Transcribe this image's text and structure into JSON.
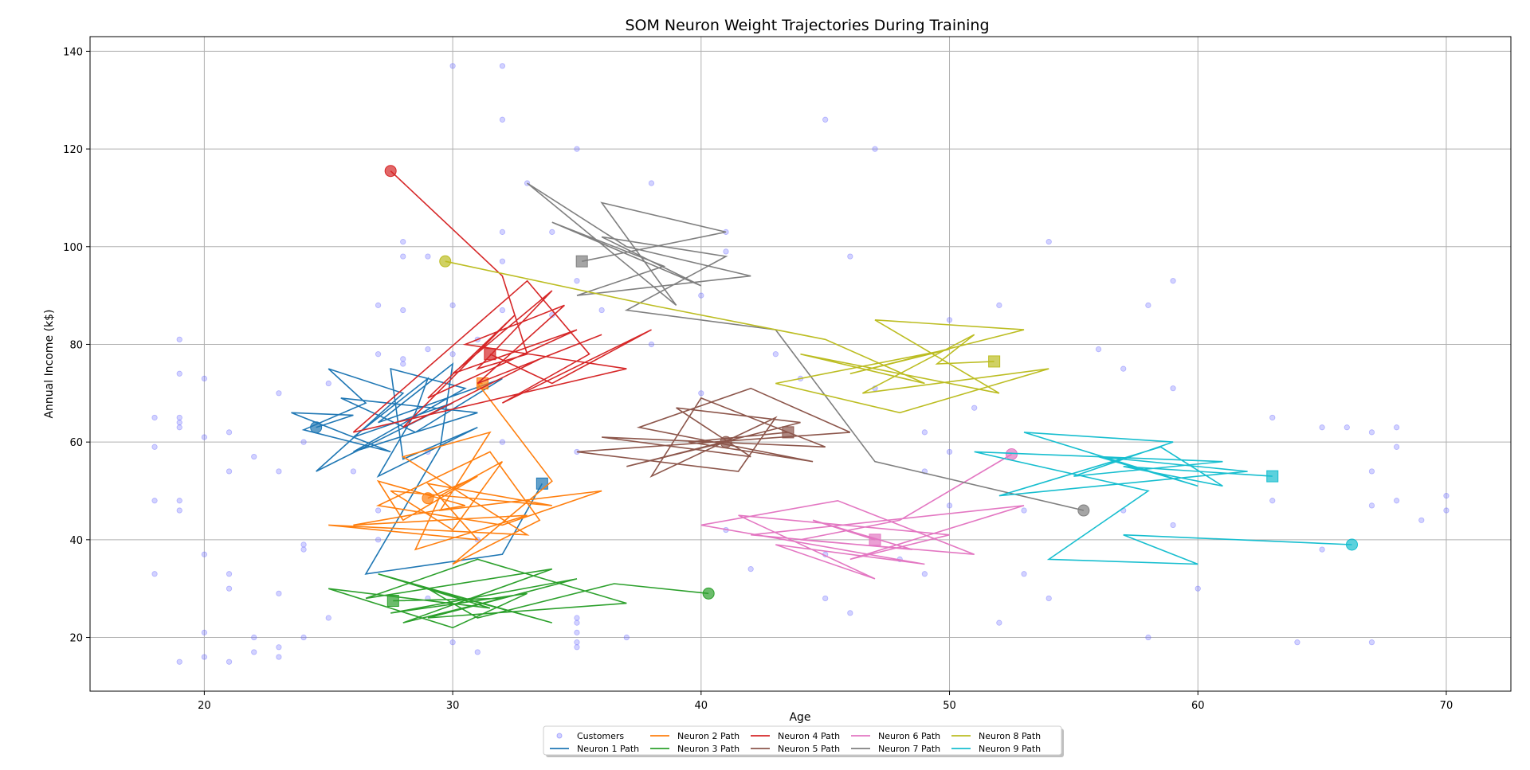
{
  "chart_data": {
    "type": "line",
    "title": "SOM Neuron Weight Trajectories During Training",
    "xlabel": "Age",
    "ylabel": "Annual Income (k$)",
    "xlim": [
      15.4,
      72.6
    ],
    "ylim": [
      9,
      143
    ],
    "x_ticks": [
      20,
      30,
      40,
      50,
      60,
      70
    ],
    "y_ticks": [
      20,
      40,
      60,
      80,
      100,
      120,
      140
    ],
    "grid": true,
    "legend_position": "bottom-center",
    "customers": {
      "name": "Customers",
      "color": "#6b6bff",
      "points": [
        [
          19,
          15
        ],
        [
          21,
          15
        ],
        [
          20,
          16
        ],
        [
          23,
          16
        ],
        [
          22,
          17
        ],
        [
          23,
          18
        ],
        [
          31,
          17
        ],
        [
          35,
          18
        ],
        [
          35,
          19
        ],
        [
          30,
          19
        ],
        [
          20,
          21
        ],
        [
          35,
          21
        ],
        [
          22,
          20
        ],
        [
          24,
          20
        ],
        [
          37,
          20
        ],
        [
          35,
          23
        ],
        [
          35,
          24
        ],
        [
          25,
          24
        ],
        [
          46,
          25
        ],
        [
          45,
          28
        ],
        [
          54,
          28
        ],
        [
          29,
          28
        ],
        [
          23,
          29
        ],
        [
          21,
          30
        ],
        [
          60,
          30
        ],
        [
          18,
          33
        ],
        [
          21,
          33
        ],
        [
          49,
          33
        ],
        [
          53,
          33
        ],
        [
          20,
          37
        ],
        [
          42,
          34
        ],
        [
          24,
          38
        ],
        [
          24,
          39
        ],
        [
          27,
          40
        ],
        [
          31,
          40
        ],
        [
          48,
          36
        ],
        [
          65,
          38
        ],
        [
          69,
          44
        ],
        [
          57,
          46
        ],
        [
          19,
          46
        ],
        [
          27,
          46
        ],
        [
          53,
          46
        ],
        [
          67,
          47
        ],
        [
          18,
          48
        ],
        [
          19,
          48
        ],
        [
          63,
          48
        ],
        [
          68,
          48
        ],
        [
          70,
          46
        ],
        [
          70,
          49
        ],
        [
          21,
          54
        ],
        [
          23,
          54
        ],
        [
          49,
          54
        ],
        [
          67,
          54
        ],
        [
          19,
          63
        ],
        [
          19,
          64
        ],
        [
          19,
          65
        ],
        [
          18,
          65
        ],
        [
          18,
          59
        ],
        [
          20,
          61
        ],
        [
          21,
          62
        ],
        [
          22,
          57
        ],
        [
          24,
          60
        ],
        [
          26,
          54
        ],
        [
          29,
          58
        ],
        [
          32,
          60
        ],
        [
          35,
          58
        ],
        [
          50,
          58
        ],
        [
          49,
          62
        ],
        [
          66,
          63
        ],
        [
          65,
          63
        ],
        [
          68,
          63
        ],
        [
          67,
          62
        ],
        [
          68,
          59
        ],
        [
          63,
          65
        ],
        [
          51,
          67
        ],
        [
          40,
          70
        ],
        [
          23,
          70
        ],
        [
          25,
          72
        ],
        [
          27,
          78
        ],
        [
          28,
          76
        ],
        [
          28,
          77
        ],
        [
          29,
          79
        ],
        [
          30,
          78
        ],
        [
          31,
          81
        ],
        [
          19,
          74
        ],
        [
          19,
          81
        ],
        [
          20,
          73
        ],
        [
          27,
          88
        ],
        [
          28,
          87
        ],
        [
          30,
          88
        ],
        [
          32,
          87
        ],
        [
          34,
          86
        ],
        [
          36,
          87
        ],
        [
          38,
          80
        ],
        [
          43,
          78
        ],
        [
          44,
          73
        ],
        [
          47,
          71
        ],
        [
          50,
          85
        ],
        [
          52,
          88
        ],
        [
          56,
          79
        ],
        [
          57,
          75
        ],
        [
          58,
          88
        ],
        [
          59,
          71
        ],
        [
          59,
          93
        ],
        [
          54,
          101
        ],
        [
          46,
          98
        ],
        [
          28,
          98
        ],
        [
          29,
          98
        ],
        [
          28,
          101
        ],
        [
          32,
          97
        ],
        [
          32,
          103
        ],
        [
          34,
          103
        ],
        [
          35,
          93
        ],
        [
          40,
          90
        ],
        [
          41,
          99
        ],
        [
          41,
          103
        ],
        [
          38,
          113
        ],
        [
          33,
          113
        ],
        [
          35,
          120
        ],
        [
          32,
          126
        ],
        [
          45,
          126
        ],
        [
          47,
          120
        ],
        [
          30,
          137
        ],
        [
          32,
          137
        ],
        [
          58,
          20
        ],
        [
          64,
          19
        ],
        [
          67,
          19
        ],
        [
          59,
          43
        ],
        [
          52,
          23
        ],
        [
          41,
          42
        ],
        [
          45,
          37
        ],
        [
          50,
          47
        ]
      ]
    },
    "series": [
      {
        "name": "Neuron 1 Path",
        "color": "#1f77b4",
        "start": [
          24.5,
          63
        ],
        "end": [
          33.6,
          51.5
        ],
        "points": [
          [
            24.5,
            63
          ],
          [
            26,
            65.5
          ],
          [
            23.5,
            66
          ],
          [
            27.5,
            58
          ],
          [
            24,
            62.5
          ],
          [
            26.5,
            68
          ],
          [
            25,
            75
          ],
          [
            28,
            70
          ],
          [
            24.5,
            54
          ],
          [
            30,
            68
          ],
          [
            26,
            61
          ],
          [
            29,
            73
          ],
          [
            28.5,
            66
          ],
          [
            27,
            53
          ],
          [
            31,
            63
          ],
          [
            28,
            56.5
          ],
          [
            27.5,
            75
          ],
          [
            30.5,
            71
          ],
          [
            26,
            58
          ],
          [
            31,
            66
          ],
          [
            25.5,
            69
          ],
          [
            28.5,
            62
          ],
          [
            32,
            73
          ],
          [
            27,
            64
          ],
          [
            30,
            76
          ],
          [
            29.5,
            59
          ],
          [
            26.5,
            33
          ],
          [
            32,
            37
          ],
          [
            33.6,
            51.5
          ]
        ]
      },
      {
        "name": "Neuron 2 Path",
        "color": "#ff7f0e",
        "start": [
          29,
          48.5
        ],
        "end": [
          31.2,
          72
        ],
        "points": [
          [
            29,
            48.5
          ],
          [
            31,
            53
          ],
          [
            28,
            44
          ],
          [
            27,
            52
          ],
          [
            30.5,
            47
          ],
          [
            26,
            43
          ],
          [
            33,
            45
          ],
          [
            28.5,
            38
          ],
          [
            29.5,
            49
          ],
          [
            32,
            56
          ],
          [
            30,
            42
          ],
          [
            27.5,
            50
          ],
          [
            34,
            47
          ],
          [
            29,
            51.5
          ],
          [
            31,
            40
          ],
          [
            25,
            43
          ],
          [
            33,
            41
          ],
          [
            28,
            57
          ],
          [
            31.5,
            62
          ],
          [
            29.5,
            46
          ],
          [
            36,
            50
          ],
          [
            32,
            43
          ],
          [
            27,
            47
          ],
          [
            31.5,
            58
          ],
          [
            33.5,
            44
          ],
          [
            30,
            35
          ],
          [
            34,
            52
          ],
          [
            31,
            72
          ],
          [
            31.2,
            72
          ]
        ]
      },
      {
        "name": "Neuron 3 Path",
        "color": "#2ca02c",
        "start": [
          40.3,
          29
        ],
        "end": [
          27.6,
          27.5
        ],
        "points": [
          [
            40.3,
            29
          ],
          [
            36.5,
            31
          ],
          [
            31,
            24
          ],
          [
            29,
            30
          ],
          [
            34,
            23
          ],
          [
            27,
            33
          ],
          [
            31.5,
            26
          ],
          [
            25,
            30
          ],
          [
            30,
            22
          ],
          [
            33,
            29
          ],
          [
            27.5,
            25
          ],
          [
            35,
            32
          ],
          [
            29,
            24
          ],
          [
            37,
            27
          ],
          [
            31,
            36
          ],
          [
            26.5,
            28
          ],
          [
            34,
            34
          ],
          [
            28,
            23
          ],
          [
            32,
            28
          ],
          [
            27.6,
            27.5
          ]
        ]
      },
      {
        "name": "Neuron 4 Path",
        "color": "#d62728",
        "start": [
          27.5,
          115.5
        ],
        "end": [
          31.5,
          78
        ],
        "points": [
          [
            27.5,
            115.5
          ],
          [
            32,
            94
          ],
          [
            33,
            78
          ],
          [
            31,
            75
          ],
          [
            34,
            91
          ],
          [
            30,
            74
          ],
          [
            35,
            83
          ],
          [
            29,
            69
          ],
          [
            32.5,
            86
          ],
          [
            28,
            63
          ],
          [
            33.5,
            77
          ],
          [
            36,
            82
          ],
          [
            31,
            72
          ],
          [
            34.5,
            88
          ],
          [
            30.5,
            80
          ],
          [
            37,
            75
          ],
          [
            26,
            62
          ],
          [
            33,
            93
          ],
          [
            35.5,
            78
          ],
          [
            32,
            68
          ],
          [
            38,
            83
          ],
          [
            34,
            72
          ],
          [
            31.5,
            78
          ]
        ]
      },
      {
        "name": "Neuron 5 Path",
        "color": "#8c564b",
        "start": [
          41,
          60
        ],
        "end": [
          43.5,
          62
        ],
        "points": [
          [
            41,
            60
          ],
          [
            37,
            55
          ],
          [
            44,
            64
          ],
          [
            39,
            67
          ],
          [
            42,
            57
          ],
          [
            36,
            61
          ],
          [
            45,
            59
          ],
          [
            40,
            69
          ],
          [
            38,
            53
          ],
          [
            43,
            65
          ],
          [
            41.5,
            54
          ],
          [
            35,
            58
          ],
          [
            46,
            62
          ],
          [
            42,
            71
          ],
          [
            37.5,
            63
          ],
          [
            44.5,
            56
          ],
          [
            39.5,
            60
          ],
          [
            43.5,
            62
          ]
        ]
      },
      {
        "name": "Neuron 6 Path",
        "color": "#e377c2",
        "start": [
          52.5,
          57.5
        ],
        "end": [
          47,
          40
        ],
        "points": [
          [
            52.5,
            57.5
          ],
          [
            48,
            44
          ],
          [
            44,
            40
          ],
          [
            51,
            37
          ],
          [
            45.5,
            48
          ],
          [
            40,
            43
          ],
          [
            49,
            35
          ],
          [
            43,
            39
          ],
          [
            47,
            32
          ],
          [
            41.5,
            45
          ],
          [
            50,
            41
          ],
          [
            46,
            36
          ],
          [
            53,
            47
          ],
          [
            42,
            41
          ],
          [
            48.5,
            38
          ],
          [
            44.5,
            44
          ],
          [
            47,
            40
          ]
        ]
      },
      {
        "name": "Neuron 7 Path",
        "color": "#7f7f7f",
        "start": [
          55.4,
          46
        ],
        "end": [
          35.2,
          97
        ],
        "points": [
          [
            55.4,
            46
          ],
          [
            47,
            56
          ],
          [
            43,
            83
          ],
          [
            37,
            87
          ],
          [
            41,
            98
          ],
          [
            36,
            102
          ],
          [
            40,
            92
          ],
          [
            34,
            105
          ],
          [
            38.5,
            96
          ],
          [
            35,
            90
          ],
          [
            42,
            94
          ],
          [
            37,
            100
          ],
          [
            33,
            113
          ],
          [
            39,
            88
          ],
          [
            36,
            109
          ],
          [
            41,
            103
          ],
          [
            35.2,
            97
          ]
        ]
      },
      {
        "name": "Neuron 8 Path",
        "color": "#bcbd22",
        "start": [
          29.7,
          97
        ],
        "end": [
          51.8,
          76.5
        ],
        "points": [
          [
            29.7,
            97
          ],
          [
            38,
            88
          ],
          [
            45,
            81
          ],
          [
            49,
            72
          ],
          [
            44,
            78
          ],
          [
            52,
            70
          ],
          [
            47,
            85
          ],
          [
            53,
            83
          ],
          [
            46,
            74
          ],
          [
            50,
            79
          ],
          [
            43,
            72
          ],
          [
            48,
            66
          ],
          [
            54,
            75
          ],
          [
            46.5,
            70
          ],
          [
            51,
            82
          ],
          [
            49.5,
            76
          ],
          [
            51.8,
            76.5
          ]
        ]
      },
      {
        "name": "Neuron 9 Path",
        "color": "#17becf",
        "start": [
          66.2,
          39
        ],
        "end": [
          63,
          53
        ],
        "points": [
          [
            66.2,
            39
          ],
          [
            57,
            41
          ],
          [
            60,
            35
          ],
          [
            54,
            36
          ],
          [
            58,
            50
          ],
          [
            51,
            58
          ],
          [
            61,
            56
          ],
          [
            55,
            53
          ],
          [
            59,
            60
          ],
          [
            53,
            62
          ],
          [
            60,
            51
          ],
          [
            56,
            57
          ],
          [
            62,
            54
          ],
          [
            52,
            49
          ],
          [
            58.5,
            59
          ],
          [
            61,
            51
          ],
          [
            57,
            55
          ],
          [
            63,
            53
          ]
        ]
      }
    ],
    "legend": [
      "Customers",
      "Neuron 1 Path",
      "Neuron 2 Path",
      "Neuron 3 Path",
      "Neuron 4 Path",
      "Neuron 5 Path",
      "Neuron 6 Path",
      "Neuron 7 Path",
      "Neuron 8 Path",
      "Neuron 9 Path"
    ]
  }
}
